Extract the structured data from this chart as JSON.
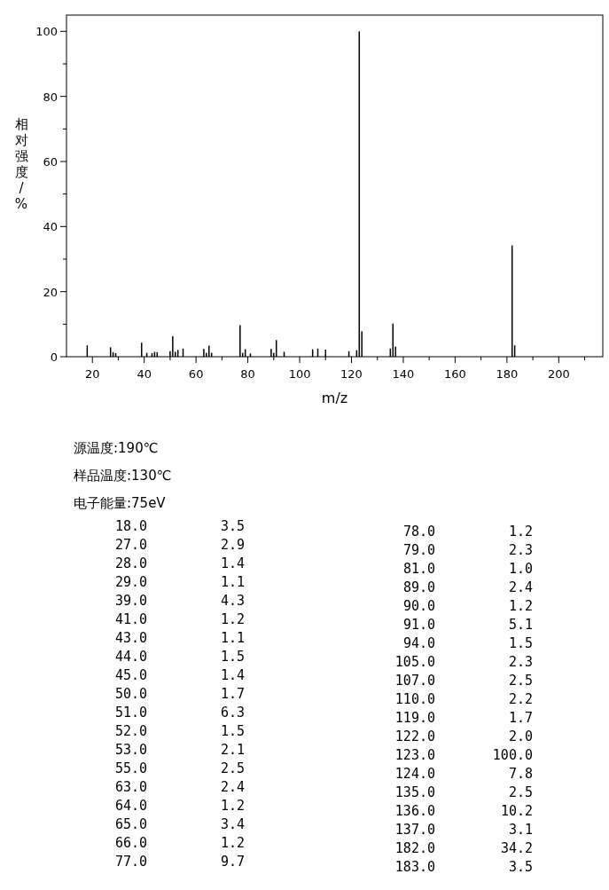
{
  "chart_data": {
    "type": "bar",
    "xlabel": "m/z",
    "ylabel": "相对强度/%",
    "x": [
      18.0,
      27.0,
      28.0,
      29.0,
      39.0,
      41.0,
      43.0,
      44.0,
      45.0,
      50.0,
      51.0,
      52.0,
      53.0,
      55.0,
      63.0,
      64.0,
      65.0,
      66.0,
      77.0,
      78.0,
      79.0,
      81.0,
      89.0,
      90.0,
      91.0,
      94.0,
      105.0,
      107.0,
      110.0,
      119.0,
      122.0,
      123.0,
      124.0,
      135.0,
      136.0,
      137.0,
      182.0,
      183.0
    ],
    "values": [
      3.5,
      2.9,
      1.4,
      1.1,
      4.3,
      1.2,
      1.1,
      1.5,
      1.4,
      1.7,
      6.3,
      1.5,
      2.1,
      2.5,
      2.4,
      1.2,
      3.4,
      1.2,
      9.7,
      1.2,
      2.3,
      1.0,
      2.4,
      1.2,
      5.1,
      1.5,
      2.3,
      2.5,
      2.2,
      1.7,
      2.0,
      100.0,
      7.8,
      2.5,
      10.2,
      3.1,
      34.2,
      3.5
    ],
    "color": "#000000",
    "xlim": [
      10,
      217
    ],
    "xticks": [
      20,
      {
        "value": 30,
        "label": null
      },
      40,
      {
        "value": 50,
        "label": null
      },
      60,
      {
        "value": 70,
        "label": null
      },
      80,
      {
        "value": 90,
        "label": null
      },
      100,
      {
        "value": 110,
        "label": null
      },
      120,
      {
        "value": 130,
        "label": null
      },
      140,
      {
        "value": 150,
        "label": null
      },
      160,
      {
        "value": 170,
        "label": null
      },
      180,
      {
        "value": 190,
        "label": null
      },
      200,
      {
        "value": 210,
        "label": null
      }
    ],
    "ylim": [
      0,
      105
    ],
    "yticks": [
      0,
      {
        "value": 10,
        "label": null
      },
      20,
      {
        "value": 30,
        "label": null
      },
      40,
      {
        "value": 50,
        "label": null
      },
      60,
      {
        "value": 70,
        "label": null
      },
      80,
      {
        "value": 90,
        "label": null
      },
      100
    ],
    "annotations": [
      "源温度:190℃",
      "样品温度:130℃",
      "电子能量:75eV",
      "18.0",
      "3.5",
      "27.0",
      "2.9",
      "28.0",
      "1.4",
      "29.0",
      "1.1",
      "39.0",
      "4.3",
      "41.0",
      "1.2",
      "43.0",
      "1.1",
      "44.0",
      "1.5",
      "45.0",
      "1.4",
      "50.0",
      "1.7",
      "51.0",
      "6.3",
      "52.0",
      "1.5",
      "53.0",
      "2.1",
      "55.0",
      "2.5",
      "63.0",
      "2.4",
      "64.0",
      "1.2",
      "65.0",
      "3.4",
      "66.0",
      "1.2",
      "77.0",
      "9.7",
      "78.0",
      "1.2",
      "79.0",
      "2.3",
      "81.0",
      "1.0",
      "89.0",
      "2.4",
      "90.0",
      "1.2",
      "91.0",
      "5.1",
      "94.0",
      "1.5",
      "105.0",
      "2.3",
      "107.0",
      "2.5",
      "110.0",
      "2.2",
      "119.0",
      "1.7",
      "122.0",
      "2.0",
      "123.0",
      "100.0",
      "124.0",
      "7.8",
      "135.0",
      "2.5",
      "136.0",
      "10.2",
      "137.0",
      "3.1",
      "182.0",
      "34.2",
      "183.0",
      "3.5"
    ]
  }
}
